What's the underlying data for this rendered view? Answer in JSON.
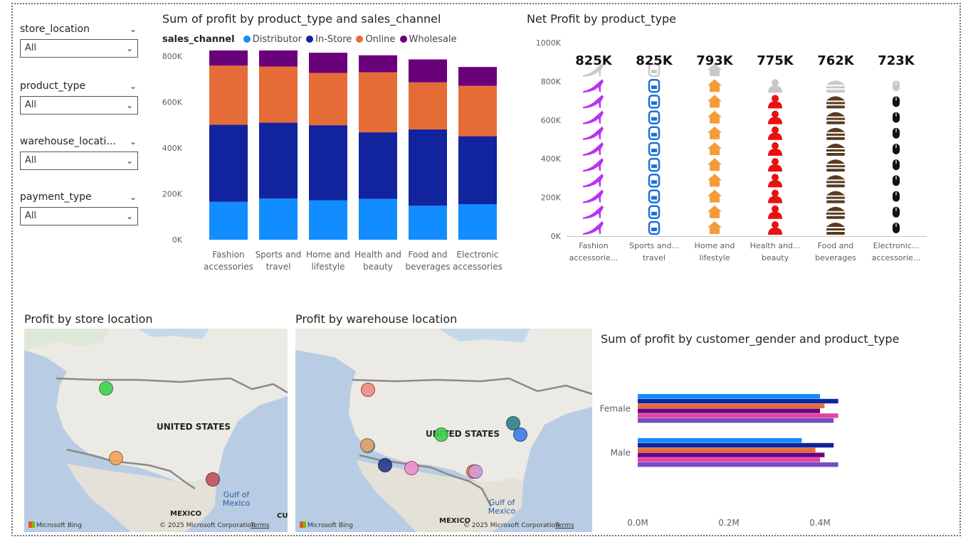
{
  "slicers": [
    {
      "label": "store_location",
      "value": "All"
    },
    {
      "label": "product_type",
      "value": "All"
    },
    {
      "label": "warehouse_locati...",
      "value": "All"
    },
    {
      "label": "payment_type",
      "value": "All"
    }
  ],
  "chart1": {
    "title": "Sum of profit by product_type and sales_channel",
    "legend_title": "sales_channel",
    "legend": [
      {
        "name": "Distributor",
        "color": "#118DFF"
      },
      {
        "name": "In-Store",
        "color": "#12239E"
      },
      {
        "name": "Online",
        "color": "#E66C37"
      },
      {
        "name": "Wholesale",
        "color": "#6B007B"
      }
    ]
  },
  "chart2": {
    "title": "Net Profit by product_type",
    "labels": [
      "825K",
      "825K",
      "793K",
      "775K",
      "762K",
      "723K"
    ],
    "categories": [
      "Fashion accessorie...",
      "Sports and... travel",
      "Home and lifestyle",
      "Health and... beauty",
      "Food and beverages",
      "Electronic... accessorie..."
    ]
  },
  "map1": {
    "title": "Profit by store location",
    "country": "UNITED STATES",
    "gulf": "Gulf of Mexico",
    "mexico": "MEXICO",
    "cuba": "CUB",
    "bing": "Microsoft Bing",
    "copyright": "© 2025 Microsoft Corporation",
    "terms": "Terms"
  },
  "map2": {
    "title": "Profit by warehouse location",
    "country": "UNITED STATES",
    "gulf": "Gulf of Mexico",
    "mexico": "MEXICO",
    "bing": "Microsoft Bing",
    "copyright": "© 2025 Microsoft Corporation",
    "terms": "Terms"
  },
  "chart3": {
    "title": "Sum of profit by customer_gender and product_type"
  },
  "chart_data": [
    {
      "type": "bar",
      "stacked": true,
      "title": "Sum of profit by product_type and sales_channel",
      "categories": [
        [
          "Fashion",
          "accessories"
        ],
        [
          "Sports and",
          "travel"
        ],
        [
          "Home and",
          "lifestyle"
        ],
        [
          "Health and",
          "beauty"
        ],
        [
          "Food and",
          "beverages"
        ],
        [
          "Electronic",
          "accessories"
        ]
      ],
      "ylim": [
        0,
        800000
      ],
      "yticks": [
        "0K",
        "200K",
        "400K",
        "600K",
        "800K"
      ],
      "series": [
        {
          "name": "Distributor",
          "color": "#118DFF",
          "values": [
            165000,
            180000,
            172000,
            178000,
            148000,
            155000
          ]
        },
        {
          "name": "In-Store",
          "color": "#12239E",
          "values": [
            336000,
            330000,
            327000,
            290000,
            333000,
            296000
          ]
        },
        {
          "name": "Online",
          "color": "#E66C37",
          "values": [
            258000,
            245000,
            228000,
            262000,
            205000,
            220000
          ]
        },
        {
          "name": "Wholesale",
          "color": "#6B007B",
          "values": [
            66000,
            70000,
            88000,
            74000,
            100000,
            82000
          ]
        }
      ]
    },
    {
      "type": "bar",
      "title": "Net Profit by product_type",
      "categories": [
        "Fashion accessorie...",
        "Sports and... travel",
        "Home and lifestyle",
        "Health and... beauty",
        "Food and beverages",
        "Electronic... accessorie..."
      ],
      "values": [
        825000,
        825000,
        793000,
        775000,
        762000,
        723000
      ],
      "data_labels": [
        "825K",
        "825K",
        "793K",
        "775K",
        "762K",
        "723K"
      ],
      "ylim": [
        0,
        1000000
      ],
      "yticks": [
        "0K",
        "200K",
        "400K",
        "600K",
        "800K",
        "1000K"
      ],
      "icon_colors": [
        "#B833F0",
        "#1E6FD9",
        "#F39C3C",
        "#E81010",
        "#5A3A1E",
        "#111111"
      ],
      "icons": [
        "high-heel-icon",
        "backpack-icon",
        "house-icon",
        "person-icon",
        "burger-icon",
        "mouse-icon"
      ]
    },
    {
      "type": "bar",
      "orientation": "horizontal",
      "title": "Sum of profit by customer_gender and product_type",
      "categories": [
        "Female",
        "Male"
      ],
      "xticks": [
        "0.0M",
        "0.2M",
        "0.4M"
      ],
      "xlim": [
        0,
        0.55
      ],
      "series": [
        {
          "color": "#118DFF",
          "values": [
            0.4,
            0.36
          ]
        },
        {
          "color": "#12239E",
          "values": [
            0.44,
            0.43
          ]
        },
        {
          "color": "#E66C37",
          "values": [
            0.41,
            0.39
          ]
        },
        {
          "color": "#6B007B",
          "values": [
            0.4,
            0.41
          ]
        },
        {
          "color": "#E044A7",
          "values": [
            0.44,
            0.4
          ]
        },
        {
          "color": "#744EC2",
          "values": [
            0.43,
            0.44
          ]
        }
      ]
    }
  ]
}
